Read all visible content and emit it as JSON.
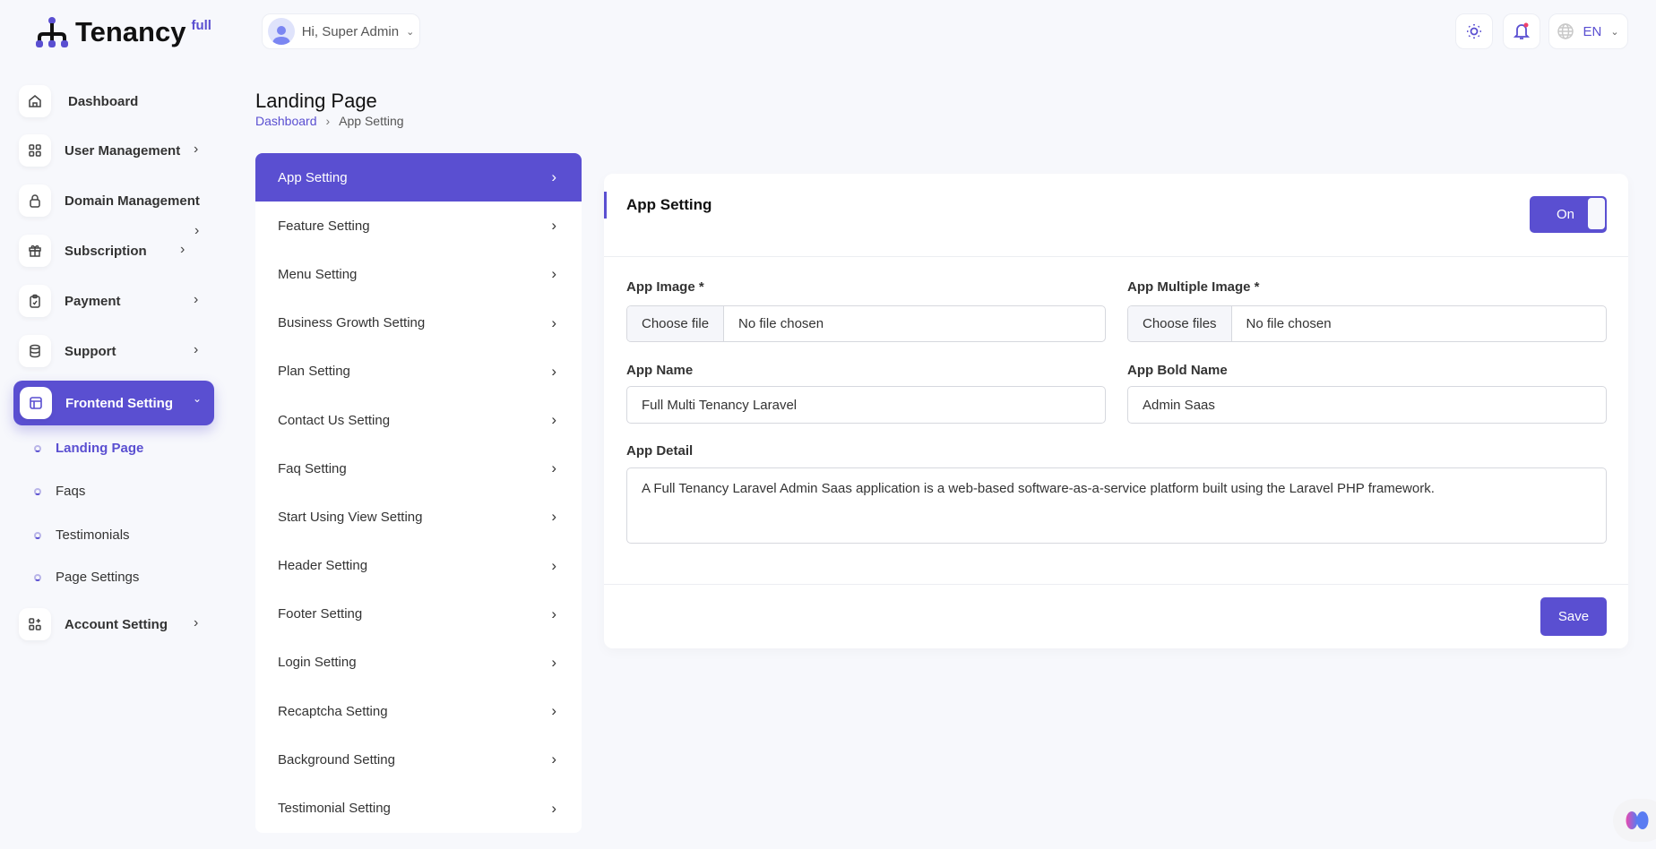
{
  "brand": {
    "name": "Tenancy",
    "sup": "full"
  },
  "header": {
    "greeting": "Hi, Super Admin",
    "language": "EN",
    "accent": "#5a4fd1"
  },
  "sidebar": {
    "items": [
      {
        "label": "Dashboard",
        "icon": "home-icon"
      },
      {
        "label": "User Management",
        "icon": "grid-icon"
      },
      {
        "label": "Domain Management",
        "icon": "lock-icon"
      },
      {
        "label": "Subscription",
        "icon": "gift-icon"
      },
      {
        "label": "Payment",
        "icon": "clipboard-icon"
      },
      {
        "label": "Support",
        "icon": "database-icon"
      },
      {
        "label": "Frontend Setting",
        "icon": "layout-icon"
      },
      {
        "label": "Account Setting",
        "icon": "apps-add-icon"
      }
    ],
    "sub_items": [
      "Landing Page",
      "Faqs",
      "Testimonials",
      "Page Settings"
    ]
  },
  "page": {
    "title": "Landing Page",
    "breadcrumb": [
      "Dashboard",
      "App Setting"
    ]
  },
  "settings_menu": [
    "App Setting",
    "Feature Setting",
    "Menu Setting",
    "Business Growth Setting",
    "Plan Setting",
    "Contact Us Setting",
    "Faq Setting",
    "Start Using View Setting",
    "Header Setting",
    "Footer Setting",
    "Login Setting",
    "Recaptcha Setting",
    "Background Setting",
    "Testimonial Setting"
  ],
  "form": {
    "title": "App Setting",
    "toggle": "On",
    "app_image_label": "App Image *",
    "app_multi_label": "App Multiple Image *",
    "choose_file": "Choose file",
    "choose_files": "Choose files",
    "no_file": "No file chosen",
    "app_name_label": "App Name",
    "app_name": "Full Multi Tenancy Laravel",
    "app_bold_label": "App Bold Name",
    "app_bold": "Admin Saas",
    "app_detail_label": "App Detail",
    "app_detail": "A Full Tenancy Laravel Admin Saas application is a web-based software-as-a-service platform built using the Laravel PHP framework.",
    "save": "Save"
  }
}
